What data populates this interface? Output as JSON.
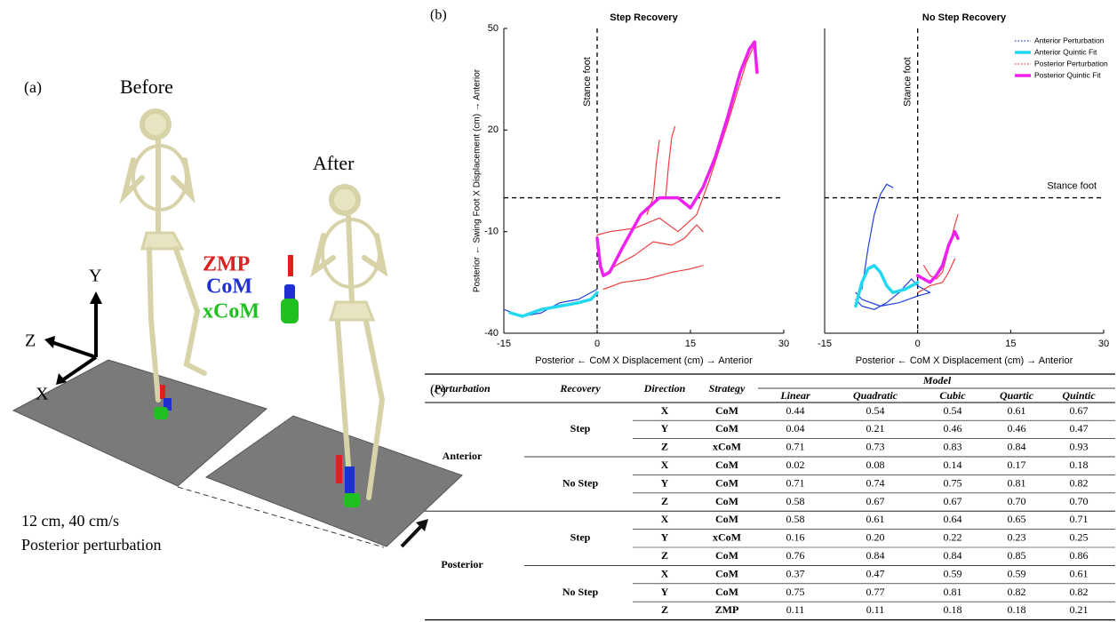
{
  "panel_a": {
    "label": "(a)",
    "before": "Before",
    "after": "After",
    "zmp": "ZMP",
    "com": "CoM",
    "xcom": "xCoM",
    "axis_y": "Y",
    "axis_z": "Z",
    "axis_x": "X",
    "caption": [
      "12 cm, 40 cm/s",
      "Posterior perturbation"
    ]
  },
  "panel_b_label": "(b)",
  "panel_c_label": "(c)",
  "chart_data": [
    {
      "type": "line",
      "title": "Step Recovery",
      "xlabel": "Posterior ← CoM X Displacement (cm) → Anterior",
      "ylabel": "Posterior ← Swing Foot X Displacement (cm) → Anterior",
      "xlim": [
        -15,
        30
      ],
      "ylim": [
        -40,
        50
      ],
      "xticks": [
        -15,
        0,
        15,
        30
      ],
      "yticks": [
        -40,
        -10,
        20,
        50
      ],
      "vline_x": 0,
      "vline_label": "Stance foot",
      "hline_y": 0,
      "series": [
        {
          "color": "#1f3fe0",
          "line_width": 1.2,
          "x": [
            -15,
            -12,
            -9,
            -6,
            -3,
            0
          ],
          "values": [
            -33,
            -35,
            -34,
            -31,
            -30,
            -27
          ]
        },
        {
          "color": "#22d8f0",
          "line_width": 3.5,
          "x": [
            -14,
            -12,
            -9,
            -6,
            -3,
            -1,
            0
          ],
          "values": [
            -34,
            -35,
            -33,
            -32,
            -31,
            -30,
            -28
          ]
        },
        {
          "color": "#f04040",
          "line_width": 1.2,
          "x": [
            0,
            2,
            6,
            10,
            13,
            16,
            18,
            21,
            24,
            25.5,
            null,
            1,
            3,
            6,
            9,
            12,
            14,
            16,
            17,
            null,
            1,
            4,
            8,
            12,
            15,
            17,
            null,
            8,
            9,
            9.5,
            10,
            null,
            11,
            11.5,
            12,
            12.5
          ],
          "values": [
            -11,
            -10,
            -9,
            -6,
            -10,
            -5,
            5,
            22,
            40,
            46,
            null,
            -23,
            -20,
            -17,
            -13,
            -14,
            -12,
            -8,
            -10,
            null,
            -27,
            -25,
            -24,
            -22,
            -21,
            -20,
            null,
            -5,
            0,
            10,
            17,
            null,
            0,
            10,
            18,
            21
          ]
        },
        {
          "color": "#f020f0",
          "line_width": 3.5,
          "x": [
            0,
            0.5,
            1,
            2,
            4,
            7,
            10,
            13,
            15,
            17,
            19,
            21,
            23,
            24.5,
            25.3,
            25.7
          ],
          "values": [
            -12,
            -20,
            -23,
            -22,
            -15,
            -5,
            0,
            0,
            -3,
            3,
            12,
            24,
            37,
            44,
            46,
            37
          ]
        }
      ]
    },
    {
      "type": "line",
      "title": "No Step Recovery",
      "xlabel": "Posterior ← CoM X Displacement (cm) → Anterior",
      "xlim": [
        -15,
        30
      ],
      "ylim": [
        -40,
        50
      ],
      "xticks": [
        -15,
        0,
        15,
        30
      ],
      "vline_x": 0,
      "vline_label": "Stance foot",
      "hline_y": 0,
      "hline_label": "Stance foot",
      "legend": "upper right",
      "series": [
        {
          "name": "Anterior Perturbation",
          "color": "#1f3fe0",
          "line_width": 1.2,
          "x": [
            -10,
            -9,
            -7,
            -5,
            -3,
            -1,
            0,
            2,
            0,
            -3,
            -6,
            -9,
            -10,
            null,
            -9,
            -8,
            -7,
            -6,
            -5,
            -4
          ],
          "values": [
            -30,
            -32,
            -33,
            -31,
            -28,
            -24,
            -26,
            -28,
            -29,
            -31,
            -32,
            -30,
            -28,
            null,
            -27,
            -15,
            -5,
            1,
            4,
            3
          ]
        },
        {
          "name": "Anterior Quintic Fit",
          "color": "#22d8f0",
          "line_width": 3.5,
          "x": [
            -10,
            -9,
            -8,
            -7,
            -6,
            -5,
            -4,
            -2,
            0
          ],
          "values": [
            -32,
            -25,
            -21,
            -20,
            -22,
            -26,
            -28,
            -27,
            -25
          ]
        },
        {
          "name": "Posterior Perturbation",
          "color": "#f04040",
          "line_width": 1.2,
          "x": [
            1,
            2,
            3,
            4,
            5,
            6,
            6.5,
            null,
            0,
            2,
            4,
            5,
            6
          ],
          "values": [
            -20,
            -23,
            -24,
            -22,
            -15,
            -8,
            -5,
            null,
            -28,
            -26,
            -25,
            -22,
            -18
          ]
        },
        {
          "name": "Posterior Quintic Fit",
          "color": "#f020f0",
          "line_width": 3.5,
          "x": [
            0,
            1,
            2,
            3,
            4,
            5,
            6,
            6.5
          ],
          "values": [
            -23,
            -24,
            -25,
            -23,
            -20,
            -14,
            -10,
            -12
          ]
        }
      ]
    }
  ],
  "table": {
    "columns": [
      "Perturbation",
      "Recovery",
      "Direction",
      "Strategy"
    ],
    "model_header": "Model",
    "models": [
      "Linear",
      "Quadratic",
      "Cubic",
      "Quartic",
      "Quintic"
    ],
    "groups": [
      {
        "name": "Anterior",
        "recoveries": [
          {
            "name": "Step",
            "rows": [
              [
                "X",
                "CoM",
                "0.44",
                "0.54",
                "0.54",
                "0.61",
                "0.67"
              ],
              [
                "Y",
                "CoM",
                "0.04",
                "0.21",
                "0.46",
                "0.46",
                "0.47"
              ],
              [
                "Z",
                "xCoM",
                "0.71",
                "0.73",
                "0.83",
                "0.84",
                "0.93"
              ]
            ]
          },
          {
            "name": "No Step",
            "rows": [
              [
                "X",
                "CoM",
                "0.02",
                "0.08",
                "0.14",
                "0.17",
                "0.18"
              ],
              [
                "Y",
                "CoM",
                "0.71",
                "0.74",
                "0.75",
                "0.81",
                "0.82"
              ],
              [
                "Z",
                "CoM",
                "0.58",
                "0.67",
                "0.67",
                "0.70",
                "0.70"
              ]
            ]
          }
        ]
      },
      {
        "name": "Posterior",
        "recoveries": [
          {
            "name": "Step",
            "rows": [
              [
                "X",
                "CoM",
                "0.58",
                "0.61",
                "0.64",
                "0.65",
                "0.71"
              ],
              [
                "Y",
                "xCoM",
                "0.16",
                "0.20",
                "0.22",
                "0.23",
                "0.25"
              ],
              [
                "Z",
                "CoM",
                "0.76",
                "0.84",
                "0.84",
                "0.85",
                "0.86"
              ]
            ]
          },
          {
            "name": "No Step",
            "rows": [
              [
                "X",
                "CoM",
                "0.37",
                "0.47",
                "0.59",
                "0.59",
                "0.61"
              ],
              [
                "Y",
                "CoM",
                "0.75",
                "0.77",
                "0.81",
                "0.82",
                "0.82"
              ],
              [
                "Z",
                "ZMP",
                "0.11",
                "0.11",
                "0.18",
                "0.18",
                "0.21"
              ]
            ]
          }
        ]
      }
    ]
  }
}
